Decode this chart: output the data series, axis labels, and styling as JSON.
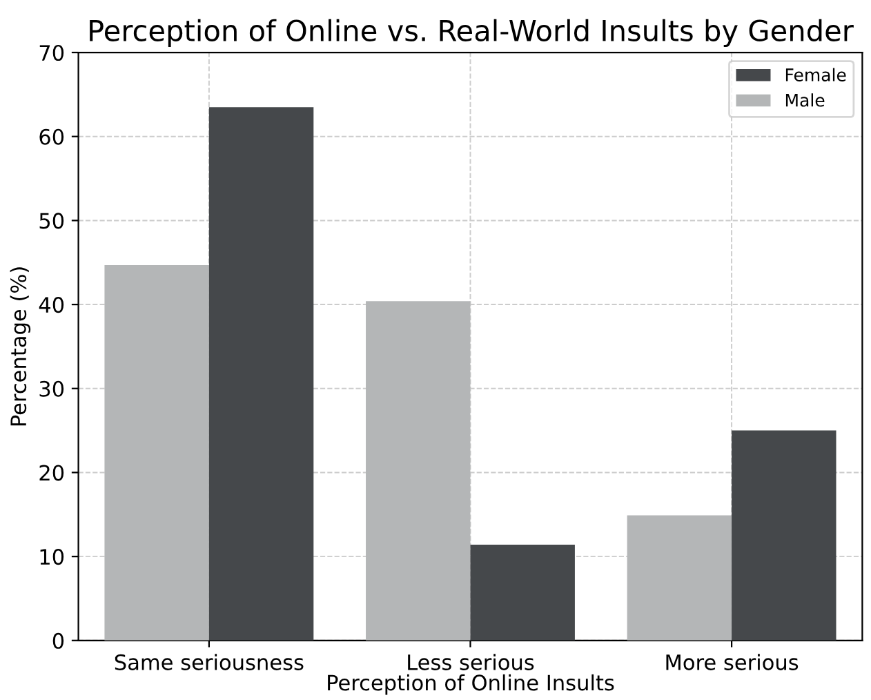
{
  "chart_data": {
    "type": "bar",
    "title": "Perception of Online vs. Real-World Insults by Gender",
    "xlabel": "Perception of Online Insults",
    "ylabel": "Percentage (%)",
    "categories": [
      "Same seriousness",
      "Less serious",
      "More serious"
    ],
    "series": [
      {
        "name": "Male",
        "color": "#b4b6b7",
        "values": [
          44.7,
          40.4,
          14.9
        ]
      },
      {
        "name": "Female",
        "color": "#45484b",
        "values": [
          63.5,
          11.4,
          25.0
        ]
      }
    ],
    "ylim": [
      0,
      70
    ],
    "yticks": [
      0,
      10,
      20,
      30,
      40,
      50,
      60,
      70
    ],
    "grid": true,
    "legend": "top right"
  }
}
